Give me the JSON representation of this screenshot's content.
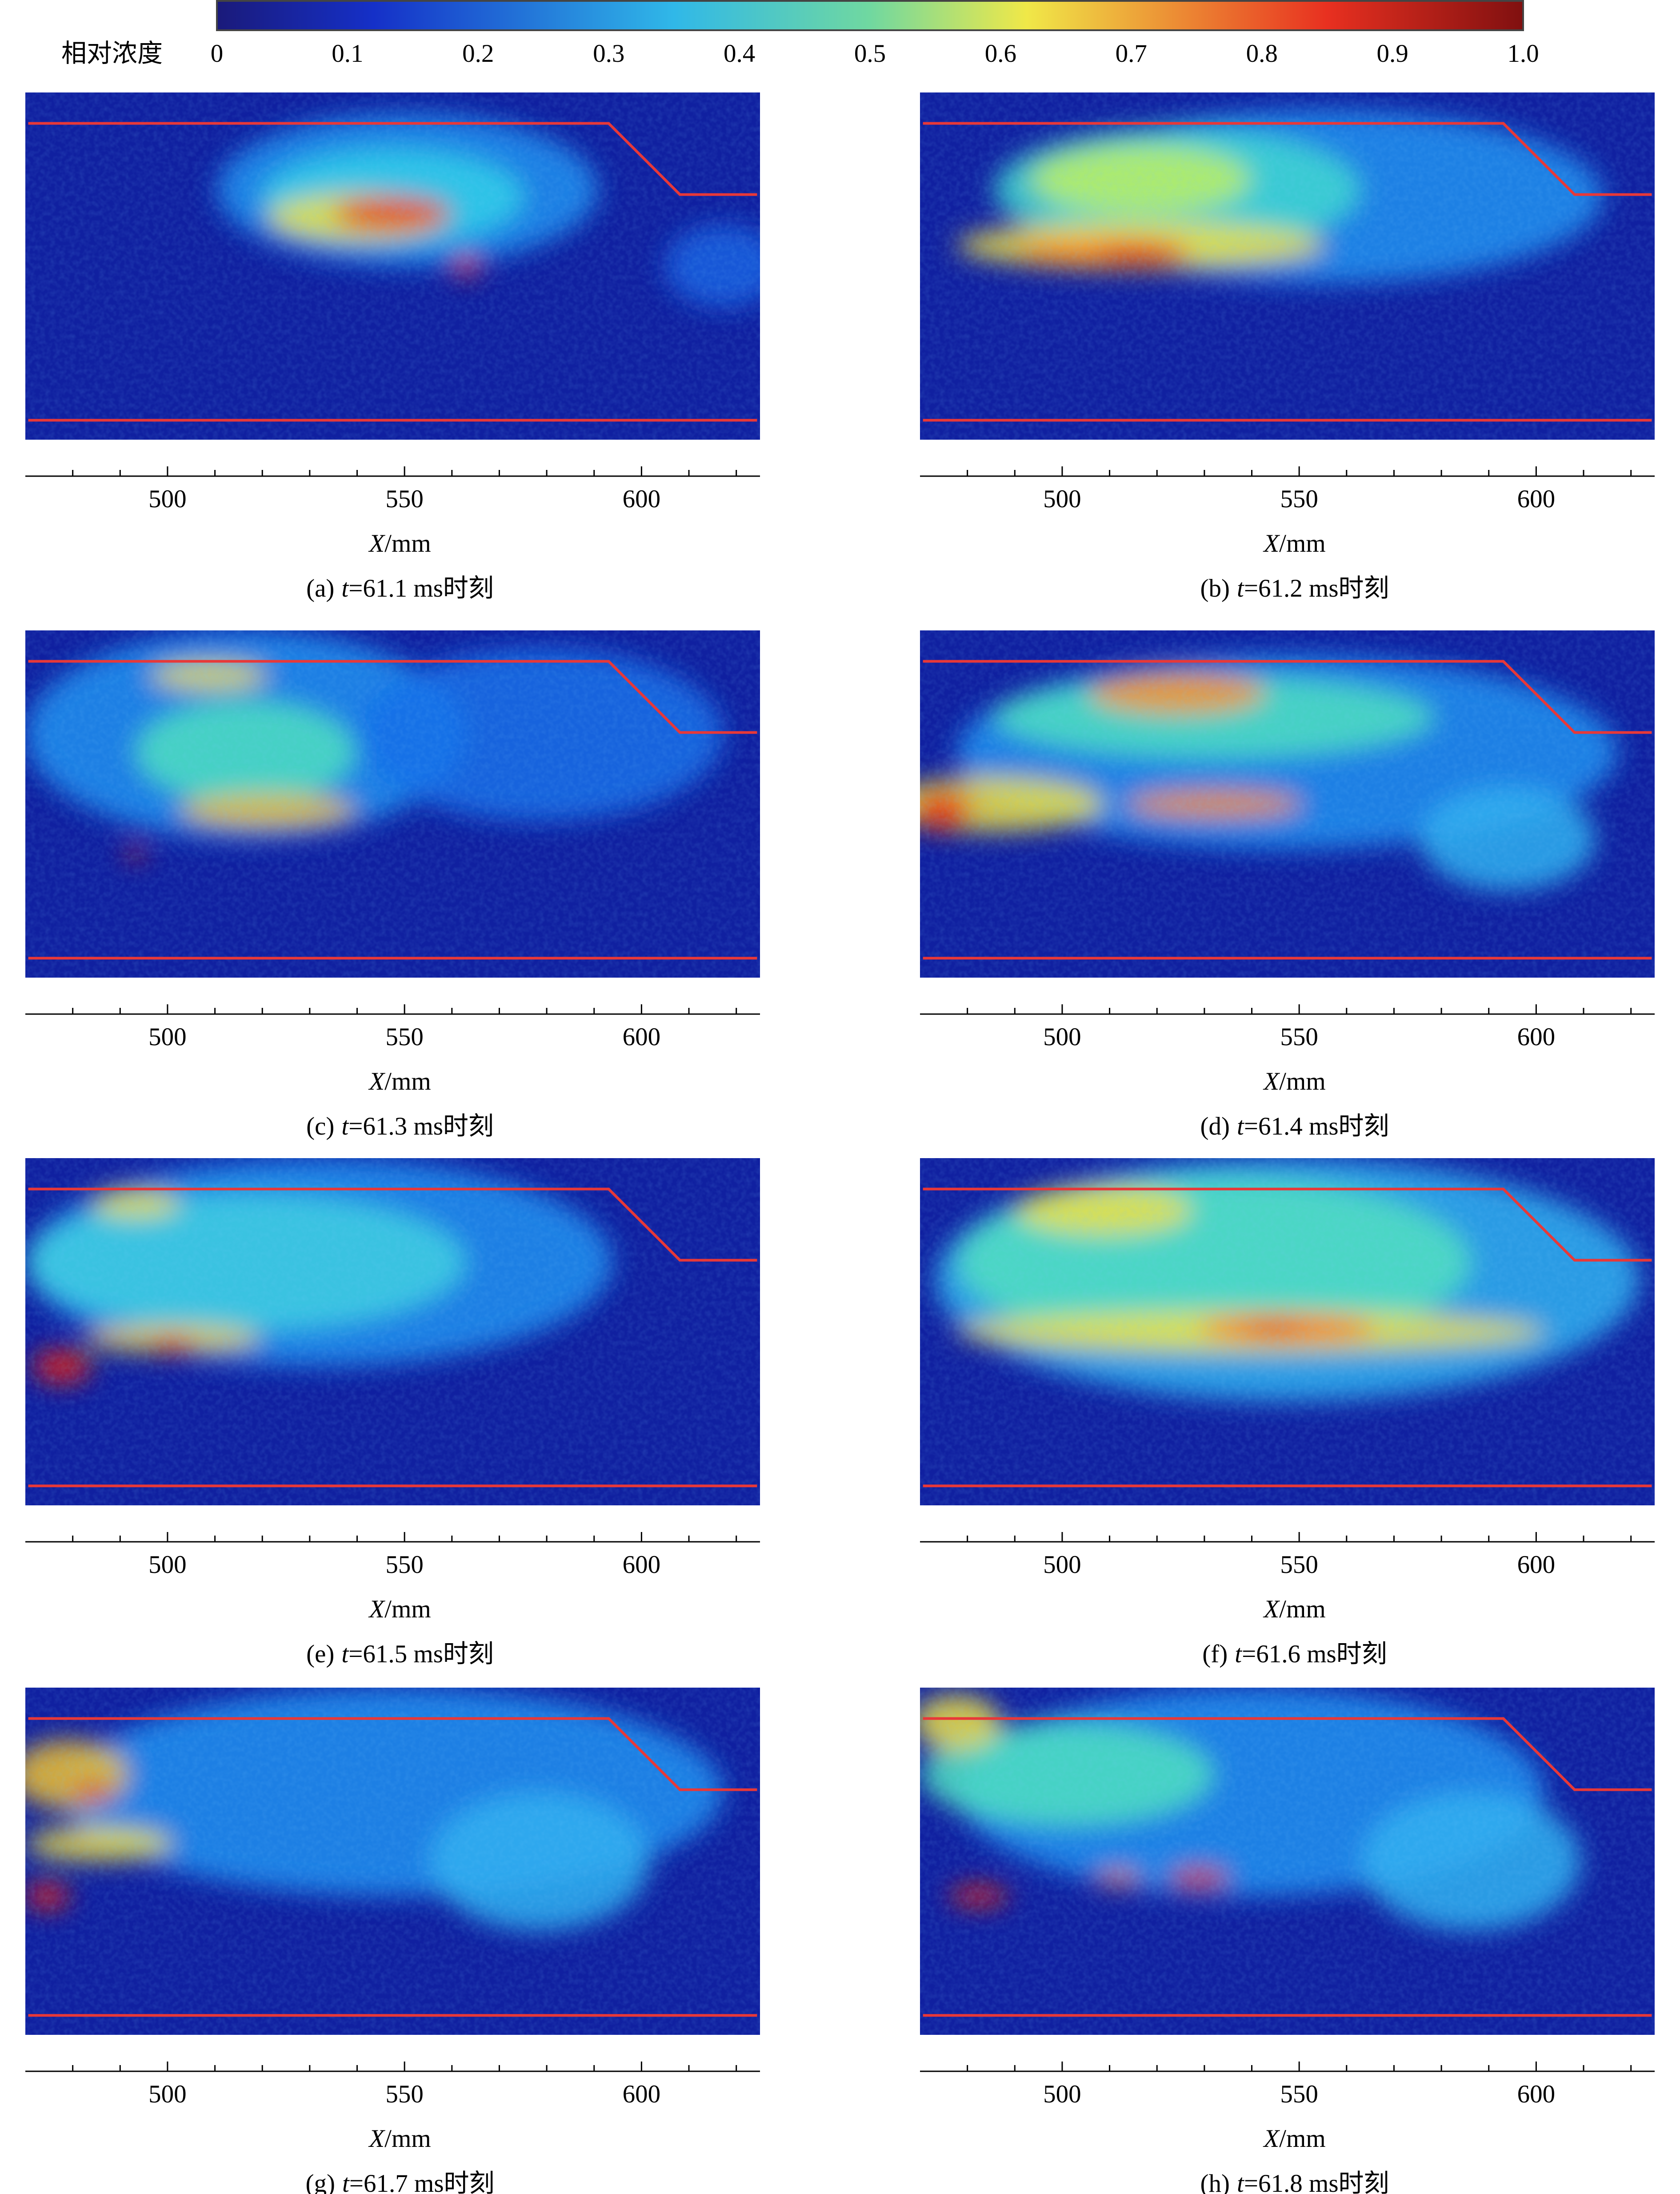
{
  "colorbar": {
    "label": "相对浓度",
    "lim": [
      0,
      1
    ],
    "ticks": [
      0,
      0.1,
      0.2,
      0.3,
      0.4,
      0.5,
      0.6,
      0.7,
      0.8,
      0.9,
      {
        "value": 1,
        "label": "1.0"
      }
    ]
  },
  "xaxis": {
    "label": {
      "var": "X",
      "unit": "/mm"
    },
    "xlim": [
      470,
      625
    ],
    "xticks": [
      500,
      550,
      600
    ],
    "minor_ticks": [
      480,
      490,
      510,
      520,
      530,
      540,
      560,
      570,
      580,
      590,
      610,
      620
    ]
  },
  "panels": [
    {
      "caption": {
        "tag": "(a)",
        "var": "t",
        "text": "=61.1 ms时刻"
      }
    },
    {
      "caption": {
        "tag": "(b)",
        "var": "t",
        "text": "=61.2 ms时刻"
      }
    },
    {
      "caption": {
        "tag": "(c)",
        "var": "t",
        "text": "=61.3 ms时刻"
      }
    },
    {
      "caption": {
        "tag": "(d)",
        "var": "t",
        "text": "=61.4 ms时刻"
      }
    },
    {
      "caption": {
        "tag": "(e)",
        "var": "t",
        "text": "=61.5 ms时刻"
      }
    },
    {
      "caption": {
        "tag": "(f)",
        "var": "t",
        "text": "=61.6 ms时刻"
      }
    },
    {
      "caption": {
        "tag": "(g)",
        "var": "t",
        "text": "=61.7 ms时刻"
      }
    },
    {
      "caption": {
        "tag": "(h)",
        "var": "t",
        "text": "=61.8 ms时刻"
      }
    }
  ]
}
